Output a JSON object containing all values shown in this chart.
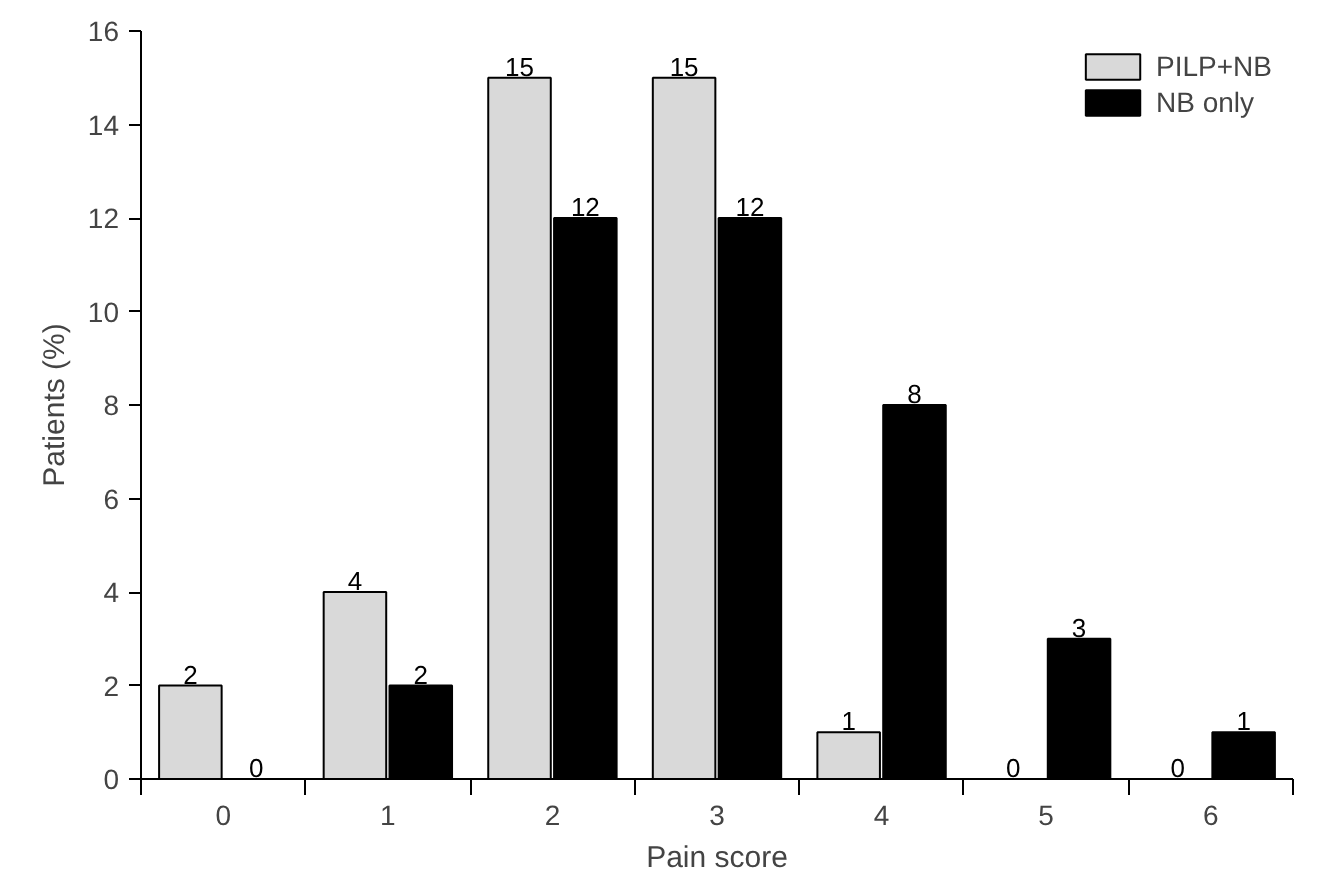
{
  "chart_data": {
    "type": "bar",
    "xlabel": "Pain score",
    "ylabel": "Patients (%)",
    "categories": [
      "0",
      "1",
      "2",
      "3",
      "4",
      "5",
      "6"
    ],
    "series": [
      {
        "name": "PILP+NB",
        "color": "#d9d9d9",
        "values": [
          2,
          4,
          15,
          15,
          1,
          0,
          0
        ]
      },
      {
        "name": "NB only",
        "color": "#000000",
        "values": [
          0,
          2,
          12,
          12,
          8,
          3,
          1
        ]
      }
    ],
    "ylim": [
      0,
      16
    ],
    "yticks": [
      0,
      2,
      4,
      6,
      8,
      10,
      12,
      14,
      16
    ],
    "grid": false,
    "legend": "top right",
    "data_labels": true
  }
}
